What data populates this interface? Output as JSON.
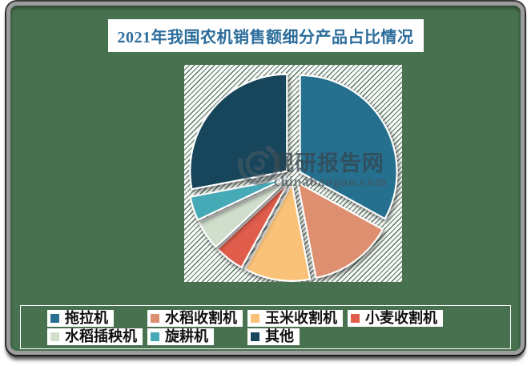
{
  "watermark": {
    "brand": "观研报告网",
    "domain": "chinabaogao.com"
  },
  "colors": {
    "page_background": "#ffffff",
    "card_background": "#48714f",
    "frame_border": "#9d9d9d",
    "title_color": "#2b6c9b",
    "title_background": "#ffffff",
    "hatch_line": "#567561",
    "hatch_background": "#fdfdfc",
    "legend_box_border": "#ffffff",
    "legend_item_background": "#ffffff",
    "legend_text": "#111111",
    "watermark_color": "#44545e"
  },
  "chart_data": {
    "type": "pie",
    "title": "2021年我国农机销售额细分产品占比情况",
    "series": [
      {
        "name": "拖拉机",
        "value": 33,
        "color": "#26708f"
      },
      {
        "name": "水稻收割机",
        "value": 14,
        "color": "#de8f70"
      },
      {
        "name": "玉米收割机",
        "value": 11,
        "color": "#fac278"
      },
      {
        "name": "小麦收割机",
        "value": 5,
        "color": "#e05d4b"
      },
      {
        "name": "水稻插秧机",
        "value": 5,
        "color": "#d0decc"
      },
      {
        "name": "旋耕机",
        "value": 4,
        "color": "#46a9b6"
      },
      {
        "name": "其他",
        "value": 28,
        "color": "#17465c"
      }
    ],
    "start_angle": "top",
    "direction": "clockwise",
    "exploded": true,
    "data_labels": false,
    "legend_position": "bottom",
    "note": "No numeric labels shown in chart; percentages estimated from slice angles."
  }
}
